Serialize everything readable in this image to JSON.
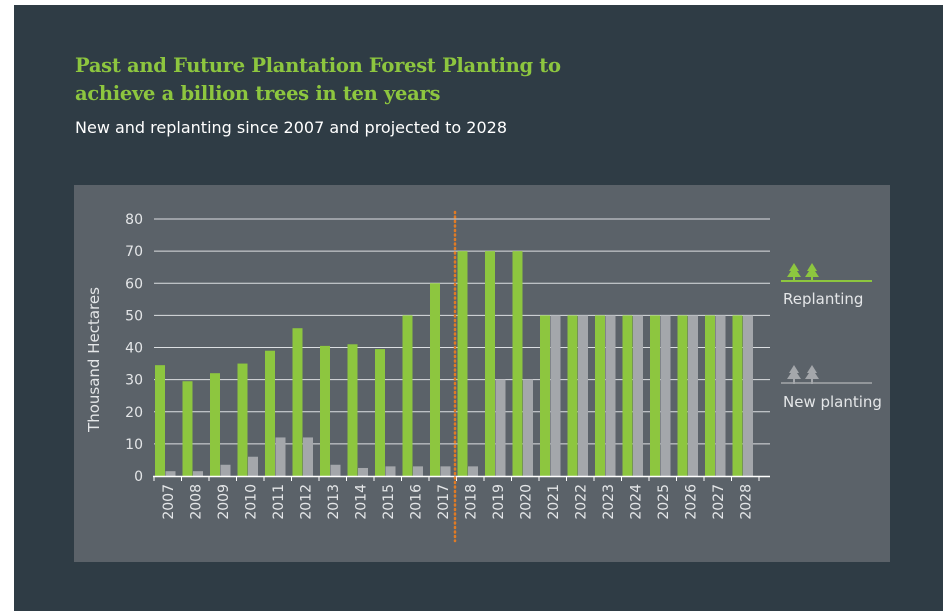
{
  "title": "Past and Future Plantation Forest Planting to achieve a billion trees in ten years",
  "subtitle": "New and replanting since 2007 and projected to 2028",
  "colors": {
    "replanting": "#8dc63f",
    "new_planting": "#a4a7ab",
    "divider": "#e07b25",
    "grid": "#dcdfe2",
    "text": "#ffffff",
    "axis_text": "#e4e6e8"
  },
  "chart_data": {
    "type": "bar",
    "ylabel": "Thousand Hectares",
    "ylim": [
      0,
      80
    ],
    "yticks": [
      0,
      10,
      20,
      30,
      40,
      50,
      60,
      70,
      80
    ],
    "grid": true,
    "legend_position": "right",
    "categories": [
      "2007",
      "2008",
      "2009",
      "2010",
      "2011",
      "2012",
      "2013",
      "2014",
      "2015",
      "2016",
      "2017",
      "2018",
      "2019",
      "2020",
      "2021",
      "2022",
      "2023",
      "2024",
      "2025",
      "2026",
      "2027",
      "2028"
    ],
    "series": [
      {
        "name": "Replanting",
        "color": "#8dc63f",
        "icon": "tree-pair-icon",
        "values": [
          34.5,
          29.5,
          32,
          35,
          39,
          46,
          40.5,
          41,
          39.5,
          50,
          60,
          70,
          70,
          70,
          50,
          50,
          50,
          50,
          50,
          50,
          50,
          50
        ]
      },
      {
        "name": "New planting",
        "color": "#a4a7ab",
        "icon": "tree-pair-icon",
        "values": [
          1.5,
          1.5,
          3.5,
          6,
          12,
          12,
          3.5,
          2.5,
          3,
          3,
          3,
          3,
          30,
          30,
          50,
          50,
          50,
          50,
          50,
          50,
          50,
          50
        ]
      }
    ],
    "projection_start_category": "2018"
  }
}
